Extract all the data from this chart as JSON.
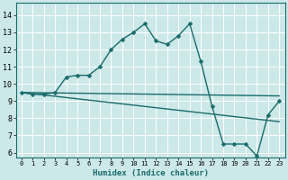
{
  "xlabel": "Humidex (Indice chaleur)",
  "bg_color": "#cce8e8",
  "line_color": "#1a6b6b",
  "grid_color": "#ffffff",
  "xlim": [
    -0.5,
    23.5
  ],
  "ylim": [
    5.7,
    14.7
  ],
  "xticks": [
    0,
    1,
    2,
    3,
    4,
    5,
    6,
    7,
    8,
    9,
    10,
    11,
    12,
    13,
    14,
    15,
    16,
    17,
    18,
    19,
    20,
    21,
    22,
    23
  ],
  "yticks": [
    6,
    7,
    8,
    9,
    10,
    11,
    12,
    13,
    14
  ],
  "line1_x": [
    0,
    1,
    2,
    3,
    4,
    5,
    6,
    7,
    8,
    9,
    10,
    11,
    12,
    13,
    14,
    15,
    16,
    17,
    18,
    19,
    20,
    21,
    22,
    23
  ],
  "line1_y": [
    9.5,
    9.4,
    9.4,
    9.5,
    10.4,
    10.5,
    10.5,
    11.0,
    12.0,
    12.6,
    13.0,
    13.5,
    12.5,
    12.3,
    12.8,
    13.5,
    11.3,
    8.7,
    6.5,
    6.5,
    6.5,
    5.8,
    8.2,
    9.0
  ],
  "line2_x": [
    0,
    23
  ],
  "line2_y": [
    9.5,
    9.3
  ],
  "line3_x": [
    0,
    23
  ],
  "line3_y": [
    9.5,
    7.8
  ],
  "markersize": 2.5,
  "linewidth": 1.0,
  "xlabel_fontsize": 6.5,
  "tick_fontsize_x": 5.0,
  "tick_fontsize_y": 6.0
}
